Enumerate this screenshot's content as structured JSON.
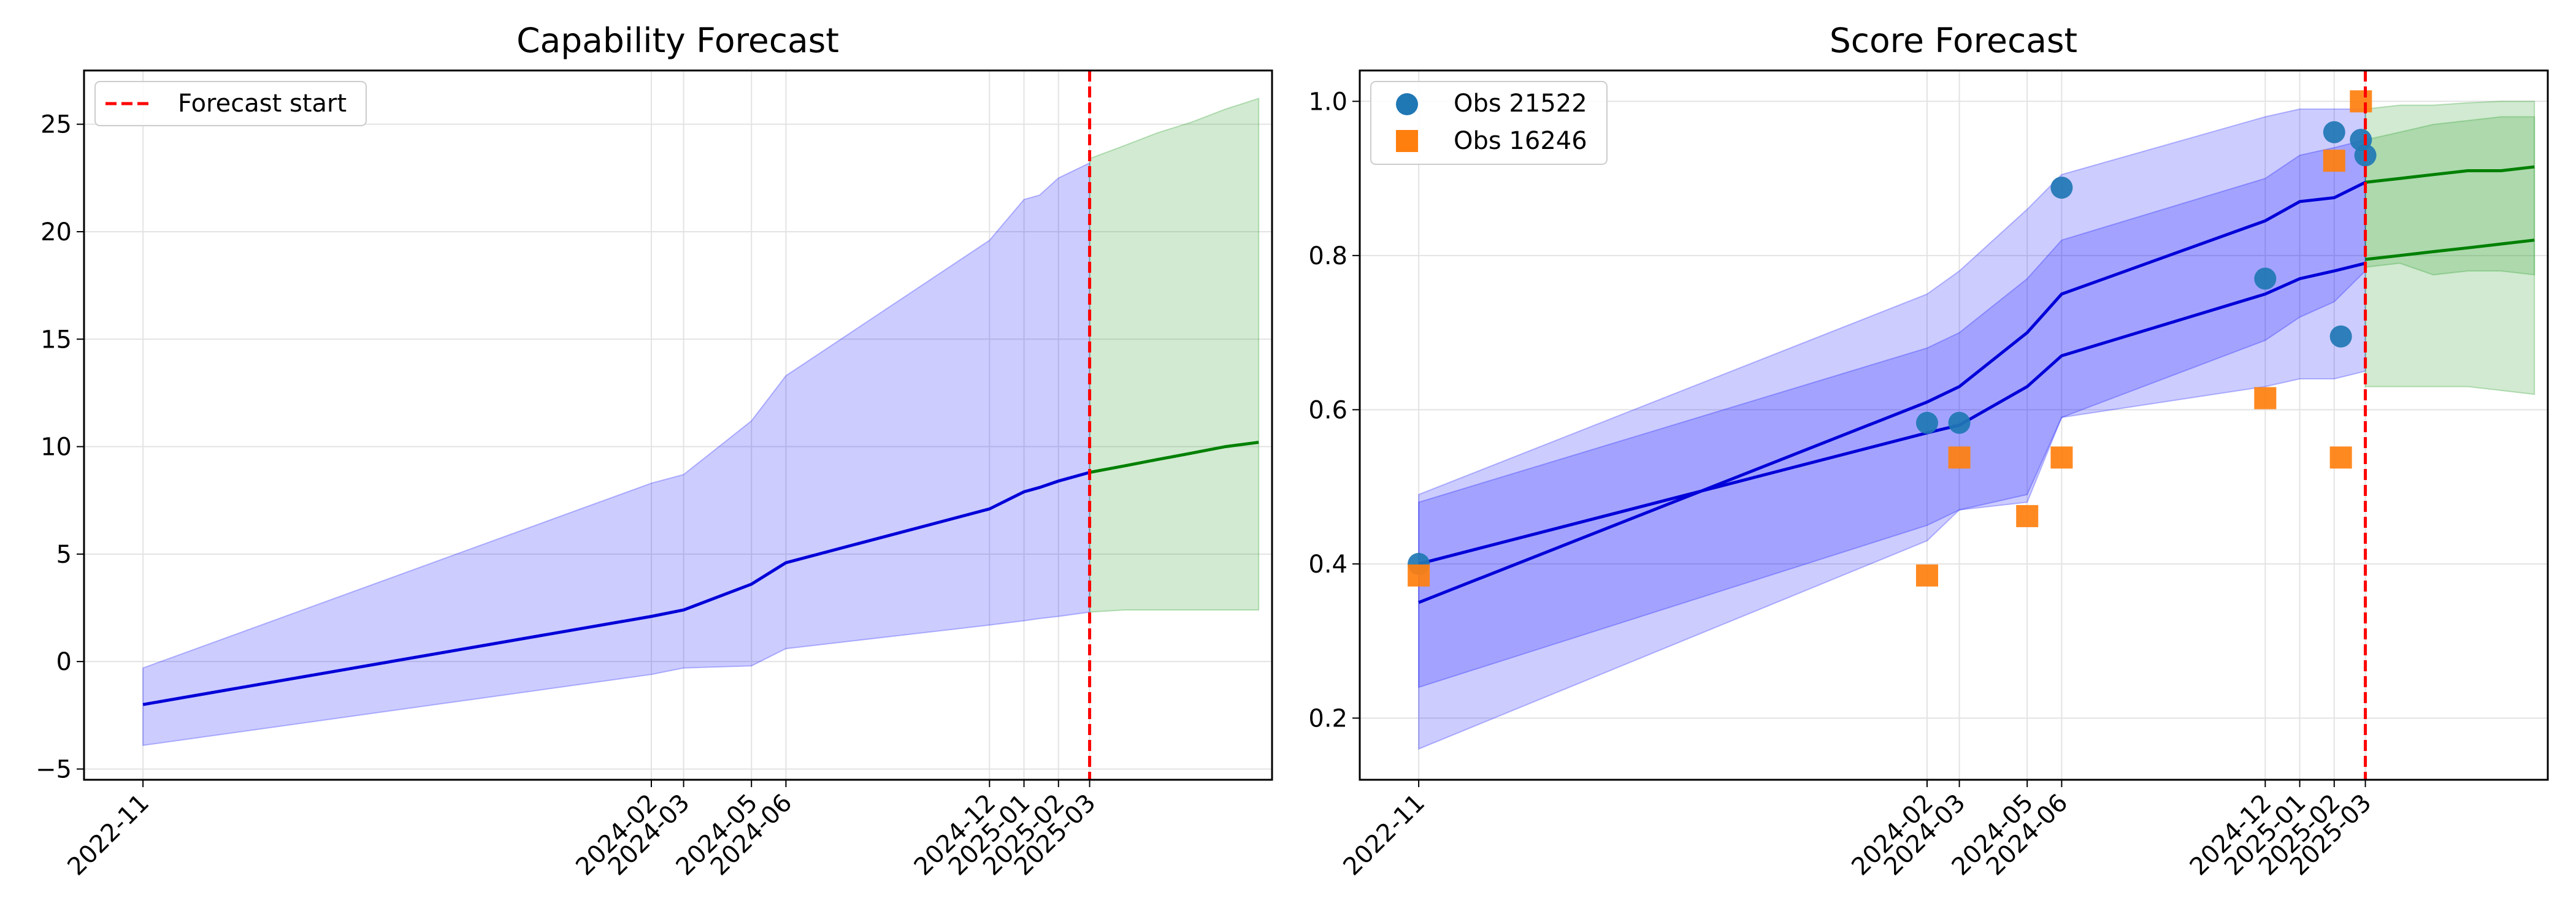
{
  "colors": {
    "history_band": "#0000ff",
    "history_line": "#0000d8",
    "forecast_band": "#2ca02c",
    "forecast_line": "#008000",
    "forecast_start": "#ff0000",
    "obs_a": "#1f77b4",
    "obs_b": "#ff7f0e"
  },
  "chart_data": [
    {
      "type": "line",
      "title": "Capability Forecast",
      "xlabel": "",
      "ylabel": "",
      "x_axis": "date",
      "xlim": [
        "2022-09-09",
        "2025-08-12"
      ],
      "ylim": [
        -5.5,
        27.5
      ],
      "grid": true,
      "legend_position": "top-left",
      "forecast_start_label": "Forecast start",
      "forecast_start": "2025-03-01",
      "x_ticks": [
        "2022-11",
        "2024-02",
        "2024-03",
        "2024-05",
        "2024-06",
        "2024-12",
        "2025-01",
        "2025-02",
        "2025-03"
      ],
      "y_ticks": [
        -5,
        0,
        5,
        10,
        15,
        20,
        25
      ],
      "history": {
        "x": [
          "2022-11-01",
          "2024-02-01",
          "2024-03-01",
          "2024-05-01",
          "2024-06-01",
          "2024-12-01",
          "2025-01-01",
          "2025-01-15",
          "2025-02-01",
          "2025-03-01"
        ],
        "median": [
          -2.0,
          2.1,
          2.4,
          3.6,
          4.6,
          7.1,
          7.9,
          8.1,
          8.4,
          8.8
        ],
        "upper": [
          -0.3,
          8.3,
          8.7,
          11.2,
          13.3,
          19.6,
          21.5,
          21.7,
          22.5,
          23.2
        ],
        "lower": [
          -3.9,
          -0.6,
          -0.3,
          -0.2,
          0.6,
          1.7,
          1.9,
          2.0,
          2.1,
          2.3
        ]
      },
      "forecast": {
        "x": [
          "2025-03-01",
          "2025-04-01",
          "2025-05-01",
          "2025-06-01",
          "2025-07-01",
          "2025-07-31"
        ],
        "median": [
          8.8,
          9.1,
          9.4,
          9.7,
          10.0,
          10.2
        ],
        "upper": [
          23.4,
          24.0,
          24.6,
          25.1,
          25.7,
          26.2
        ],
        "lower": [
          2.3,
          2.4,
          2.4,
          2.4,
          2.4,
          2.4
        ]
      }
    },
    {
      "type": "line",
      "title": "Score Forecast",
      "xlabel": "",
      "ylabel": "",
      "x_axis": "date",
      "xlim": [
        "2022-09-09",
        "2025-08-12"
      ],
      "ylim": [
        0.12,
        1.04
      ],
      "grid": true,
      "legend_position": "top-left",
      "forecast_start": "2025-03-01",
      "x_ticks": [
        "2022-11",
        "2024-02",
        "2024-03",
        "2024-05",
        "2024-06",
        "2024-12",
        "2025-01",
        "2025-02",
        "2025-03"
      ],
      "y_ticks": [
        0.2,
        0.4,
        0.6,
        0.8,
        1.0
      ],
      "series": [
        {
          "name": "Obs 21522",
          "history": {
            "x": [
              "2022-11-01",
              "2024-02-01",
              "2024-03-01",
              "2024-05-01",
              "2024-06-01",
              "2024-12-01",
              "2025-01-01",
              "2025-02-01",
              "2025-03-01"
            ],
            "median": [
              0.4,
              0.57,
              0.58,
              0.63,
              0.67,
              0.75,
              0.77,
              0.78,
              0.79
            ],
            "upper": [
              0.48,
              0.68,
              0.7,
              0.77,
              0.82,
              0.9,
              0.93,
              0.94,
              0.95
            ],
            "lower": [
              0.24,
              0.45,
              0.47,
              0.49,
              0.59,
              0.63,
              0.64,
              0.64,
              0.65
            ]
          },
          "forecast": {
            "x": [
              "2025-03-01",
              "2025-04-01",
              "2025-05-01",
              "2025-06-01",
              "2025-07-01",
              "2025-07-31"
            ],
            "median": [
              0.795,
              0.8,
              0.805,
              0.81,
              0.815,
              0.82
            ],
            "upper": [
              0.95,
              0.96,
              0.97,
              0.975,
              0.98,
              0.98
            ],
            "lower": [
              0.63,
              0.63,
              0.63,
              0.63,
              0.625,
              0.62
            ]
          },
          "points": {
            "x": [
              "2022-11-01",
              "2024-02-01",
              "2024-03-01",
              "2024-06-01",
              "2024-12-01",
              "2025-02-01",
              "2025-02-07",
              "2025-02-25",
              "2025-03-01"
            ],
            "y": [
              0.4,
              0.583,
              0.583,
              0.888,
              0.77,
              0.96,
              0.695,
              0.95,
              0.93
            ]
          }
        },
        {
          "name": "Obs 16246",
          "history": {
            "x": [
              "2022-11-01",
              "2024-02-01",
              "2024-03-01",
              "2024-05-01",
              "2024-06-01",
              "2024-12-01",
              "2025-01-01",
              "2025-02-01",
              "2025-03-01"
            ],
            "median": [
              0.35,
              0.61,
              0.63,
              0.7,
              0.75,
              0.845,
              0.87,
              0.875,
              0.895
            ],
            "upper": [
              0.49,
              0.75,
              0.78,
              0.86,
              0.905,
              0.98,
              0.99,
              0.99,
              0.99
            ],
            "lower": [
              0.16,
              0.43,
              0.47,
              0.48,
              0.59,
              0.69,
              0.72,
              0.74,
              0.78
            ]
          },
          "forecast": {
            "x": [
              "2025-03-01",
              "2025-04-01",
              "2025-05-01",
              "2025-06-01",
              "2025-07-01",
              "2025-07-31"
            ],
            "median": [
              0.895,
              0.9,
              0.905,
              0.91,
              0.91,
              0.915
            ],
            "upper": [
              0.99,
              0.995,
              0.995,
              0.998,
              1.0,
              1.0
            ],
            "lower": [
              0.785,
              0.79,
              0.775,
              0.78,
              0.78,
              0.775
            ]
          },
          "points": {
            "x": [
              "2022-11-01",
              "2024-02-01",
              "2024-03-01",
              "2024-05-01",
              "2024-06-01",
              "2024-12-01",
              "2025-02-01",
              "2025-02-07",
              "2025-02-25"
            ],
            "y": [
              0.385,
              0.385,
              0.538,
              0.462,
              0.538,
              0.615,
              0.923,
              0.538,
              1.0
            ]
          }
        }
      ]
    }
  ]
}
